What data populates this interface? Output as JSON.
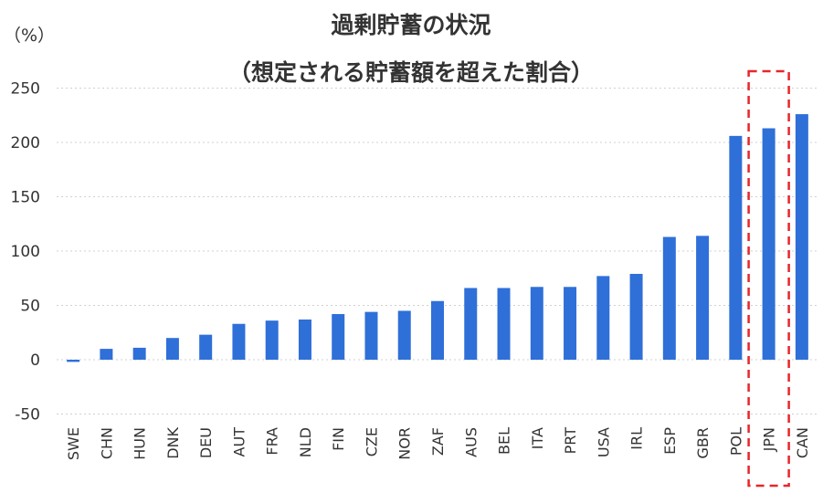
{
  "chart_data": {
    "type": "bar",
    "title": "過剰貯蓄の状況",
    "subtitle": "（想定される貯蓄額を超えた割合）",
    "ylabel": "（%）",
    "xlabel": "",
    "ylim": [
      -50,
      250
    ],
    "yticks": [
      -50,
      0,
      50,
      100,
      150,
      200,
      250
    ],
    "grid": true,
    "categories": [
      "SWE",
      "CHN",
      "HUN",
      "DNK",
      "DEU",
      "AUT",
      "FRA",
      "NLD",
      "FIN",
      "CZE",
      "NOR",
      "ZAF",
      "AUS",
      "BEL",
      "ITA",
      "PRT",
      "USA",
      "IRL",
      "ESP",
      "GBR",
      "POL",
      "JPN",
      "CAN"
    ],
    "series": [
      {
        "name": "過剰貯蓄",
        "values": [
          -2,
          10,
          11,
          20,
          23,
          33,
          36,
          37,
          42,
          44,
          45,
          54,
          66,
          66,
          67,
          67,
          77,
          79,
          113,
          114,
          206,
          213,
          226
        ]
      }
    ],
    "highlight": "JPN",
    "colors": {
      "bar": "#2f6fd8",
      "highlight": "#e8262b",
      "grid": "#d0d0d0",
      "text": "#333333"
    }
  }
}
